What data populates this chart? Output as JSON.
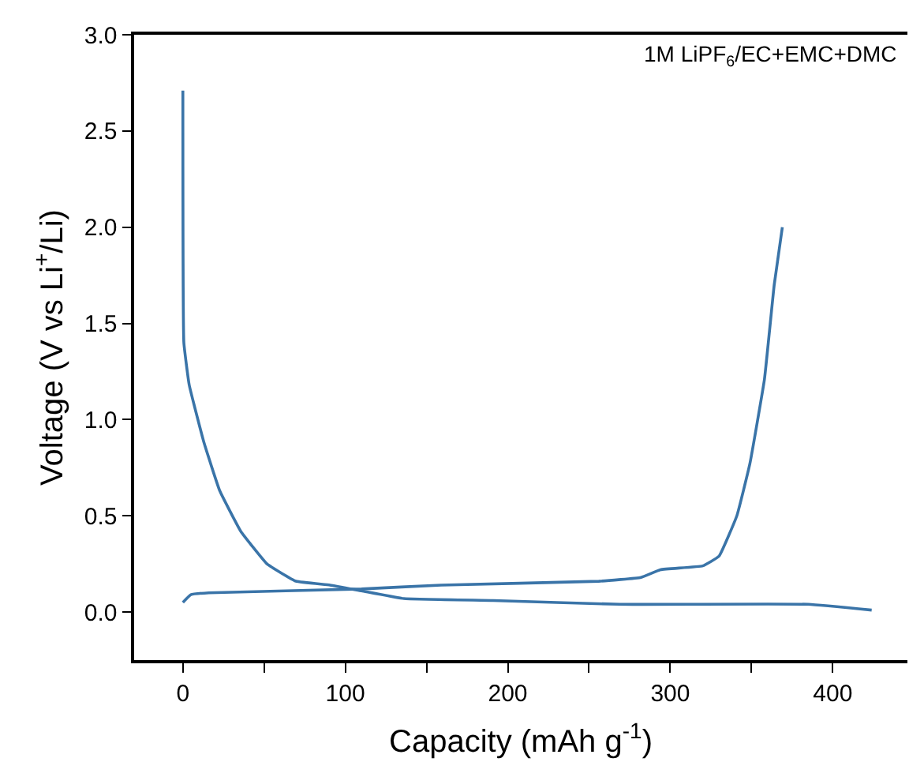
{
  "chart_data": {
    "type": "line",
    "xlabel": "Capacity (mAh g$^{-1}$)",
    "ylabel": "Voltage (V vs Li$^{+}$/Li)",
    "annotations": [
      "1M LiPF$_{6}$/EC+EMC+DMC"
    ],
    "xlim": [
      -30,
      446
    ],
    "ylim": [
      -0.25,
      3.0
    ],
    "xticks": [
      0,
      {
        "value": 50,
        "label": null
      },
      100,
      {
        "value": 150,
        "label": null
      },
      200,
      {
        "value": 250,
        "label": null
      },
      300,
      {
        "value": 350,
        "label": null
      },
      400
    ],
    "yticks": [
      {
        "value": 0,
        "label": "0.0"
      },
      0.5,
      {
        "value": 1,
        "label": "1.0"
      },
      1.5,
      {
        "value": 2,
        "label": "2.0"
      },
      2.5,
      {
        "value": 3,
        "label": "3.0"
      }
    ],
    "marker": "none",
    "line_style": "solid",
    "series": [
      {
        "color": "#3a74a8",
        "x": [
          0,
          0.6,
          3.9,
          13,
          22.7,
          35.6,
          51.8,
          69.6,
          90.6,
          110,
          136,
          191,
          269,
          385,
          424
        ],
        "values": [
          2.71,
          1.4,
          1.18,
          0.88,
          0.63,
          0.42,
          0.25,
          0.16,
          0.14,
          0.11,
          0.07,
          0.06,
          0.04,
          0.04,
          0.01
        ]
      },
      {
        "color": "#3a74a8",
        "x": [
          0,
          4.9,
          16,
          110,
          159,
          256,
          282,
          294,
          320,
          330,
          341,
          349,
          358,
          364,
          369
        ],
        "values": [
          0.05,
          0.09,
          0.1,
          0.12,
          0.14,
          0.16,
          0.18,
          0.22,
          0.24,
          0.29,
          0.5,
          0.77,
          1.21,
          1.7,
          2.0
        ]
      }
    ]
  }
}
